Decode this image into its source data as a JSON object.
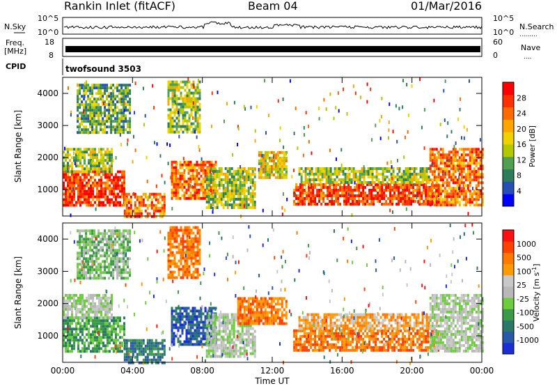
{
  "header": {
    "station": "Rankin Inlet (fitACF)",
    "beam": "Beam 04",
    "date": "01/Mar/2016"
  },
  "strips": {
    "nsky_label": "N.Sky",
    "nsearch_label": "N.Search",
    "freq_label": "Freq.",
    "freq_unit": "[MHz]",
    "nave_label": "Nave",
    "cpid_label": "CPID",
    "cpid_value": "twofsound 3503",
    "noise_ticks_left": [
      "10^5",
      "10^0"
    ],
    "noise_ticks_right": [
      "10^5",
      "10^0"
    ],
    "freq_ticks": [
      "18",
      "8"
    ],
    "nave_ticks": [
      "60",
      "0"
    ]
  },
  "colors": {
    "power_scale": [
      "#0000ff",
      "#2850b4",
      "#2e7d5a",
      "#4fa050",
      "#b4c800",
      "#f0d200",
      "#ffa500",
      "#ff6a00",
      "#ff3000",
      "#ff0000"
    ],
    "velocity_scale": [
      "#1a2ed8",
      "#2858a8",
      "#2c7868",
      "#3a9a48",
      "#6ccc3c",
      "#b8b8b8",
      "#c8c8c8",
      "#ff9a00",
      "#ff7800",
      "#ff4000",
      "#ff1010"
    ]
  },
  "chart_data": [
    {
      "type": "heatmap",
      "panel": "power",
      "ylabel": "Slant Range [km]",
      "ylim": [
        180,
        4500
      ],
      "yticks": [
        "1000",
        "2000",
        "3000",
        "4000"
      ],
      "xlim": [
        0,
        24
      ],
      "xticks": [
        "00:00",
        "04:00",
        "08:00",
        "12:00",
        "16:00",
        "20:00",
        "00:00"
      ],
      "colorbar_label": "Power [dB]",
      "colorbar_ticks": [
        "28",
        "24",
        "20",
        "16",
        "12",
        "8",
        "4"
      ],
      "colorbar_range": [
        0,
        30
      ],
      "regions": [
        {
          "t": [
            0.0,
            3.5
          ],
          "r": [
            500,
            1600
          ],
          "level": 26
        },
        {
          "t": [
            0.0,
            2.8
          ],
          "r": [
            1600,
            2300
          ],
          "level": 14
        },
        {
          "t": [
            3.5,
            5.8
          ],
          "r": [
            200,
            900
          ],
          "level": 22
        },
        {
          "t": [
            6.2,
            8.8
          ],
          "r": [
            700,
            1900
          ],
          "level": 24
        },
        {
          "t": [
            8.2,
            11.0
          ],
          "r": [
            400,
            1700
          ],
          "level": 12
        },
        {
          "t": [
            11.2,
            12.8
          ],
          "r": [
            1400,
            2200
          ],
          "level": 16
        },
        {
          "t": [
            13.2,
            21.5
          ],
          "r": [
            550,
            1200
          ],
          "level": 26
        },
        {
          "t": [
            13.5,
            21.0
          ],
          "r": [
            1200,
            1700
          ],
          "level": 14
        },
        {
          "t": [
            21.0,
            24.0
          ],
          "r": [
            500,
            2300
          ],
          "level": 22
        },
        {
          "t": [
            0.8,
            3.8
          ],
          "r": [
            2800,
            4300
          ],
          "level": 10
        },
        {
          "t": [
            6.0,
            7.8
          ],
          "r": [
            2800,
            4400
          ],
          "level": 12
        }
      ]
    },
    {
      "type": "heatmap",
      "panel": "velocity",
      "ylabel": "Slant Range [km]",
      "ylim": [
        180,
        4500
      ],
      "yticks": [
        "1000",
        "2000",
        "3000",
        "4000"
      ],
      "xlim": [
        0,
        24
      ],
      "xticks": [
        "00:00",
        "04:00",
        "08:00",
        "12:00",
        "16:00",
        "20:00",
        "00:00"
      ],
      "xlabel": "Time UT",
      "colorbar_label": "Velocity [m s",
      "colorbar_label_sup": "-1",
      "colorbar_label_end": "]",
      "colorbar_ticks": [
        "1000",
        "500",
        "100",
        "25",
        "-25",
        "-100",
        "-500",
        "-1000"
      ],
      "regions": [
        {
          "t": [
            0.0,
            3.5
          ],
          "r": [
            500,
            1600
          ],
          "level": 3
        },
        {
          "t": [
            0.0,
            2.8
          ],
          "r": [
            1600,
            2300
          ],
          "level": 5
        },
        {
          "t": [
            3.5,
            5.8
          ],
          "r": [
            200,
            900
          ],
          "level": 2
        },
        {
          "t": [
            6.2,
            8.8
          ],
          "r": [
            700,
            1900
          ],
          "level": 1
        },
        {
          "t": [
            8.2,
            11.0
          ],
          "r": [
            400,
            1700
          ],
          "level": 5
        },
        {
          "t": [
            10.0,
            12.8
          ],
          "r": [
            1400,
            2200
          ],
          "level": 8
        },
        {
          "t": [
            13.2,
            21.5
          ],
          "r": [
            550,
            1200
          ],
          "level": 8
        },
        {
          "t": [
            13.5,
            21.0
          ],
          "r": [
            1200,
            1700
          ],
          "level": 7
        },
        {
          "t": [
            21.0,
            24.0
          ],
          "r": [
            500,
            2300
          ],
          "level": 5
        },
        {
          "t": [
            0.8,
            3.8
          ],
          "r": [
            2800,
            4300
          ],
          "level": 4
        },
        {
          "t": [
            6.0,
            7.8
          ],
          "r": [
            2800,
            4400
          ],
          "level": 8
        }
      ]
    }
  ]
}
